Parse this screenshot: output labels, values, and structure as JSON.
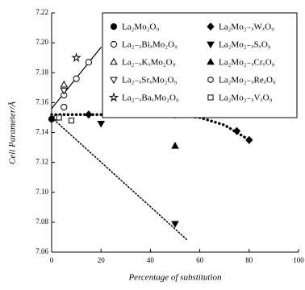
{
  "chart_data": {
    "type": "scatter",
    "xlabel": "Percentage of substitution",
    "ylabel": "Cell Parameter/Å",
    "xlim": [
      0,
      100
    ],
    "xticks": [
      0,
      20,
      40,
      60,
      80,
      100
    ],
    "ylim": [
      7.06,
      7.22
    ],
    "yticks": [
      7.06,
      7.08,
      {
        "value": 7.1,
        "label": "7.10"
      },
      7.12,
      7.14,
      7.16,
      7.18,
      {
        "value": 7.2,
        "label": "7.20"
      },
      7.22
    ],
    "legend": "upper right",
    "series": [
      {
        "name": "La₂Mo₂O₉",
        "marker": "circle",
        "filled": true,
        "color": "#000",
        "x": [
          0
        ],
        "values": [
          7.149
        ]
      },
      {
        "name": "La₂₋ₓBiₓMo₂O₉",
        "marker": "circle",
        "filled": false,
        "color": "#000",
        "x": [
          5,
          5,
          10,
          15
        ],
        "values": [
          7.157,
          7.165,
          7.176,
          7.187
        ]
      },
      {
        "name": "La₂₋ₓKₓMo₂O₉",
        "marker": "triangle-up",
        "filled": false,
        "color": "#000",
        "x": [
          5
        ],
        "values": [
          7.172
        ]
      },
      {
        "name": "La₂₋ₓSrₓMo₂O₉",
        "marker": "triangle-down",
        "filled": false,
        "color": "#000",
        "x": [
          5
        ],
        "values": [
          7.168
        ]
      },
      {
        "name": "La₂₋ₓBaₓMo₂O₉",
        "marker": "star",
        "filled": false,
        "color": "#000",
        "x": [
          10
        ],
        "values": [
          7.19
        ]
      },
      {
        "name": "La₂Mo₂₋ₓWₓO₉",
        "marker": "diamond",
        "filled": true,
        "color": "#000",
        "x": [
          15,
          50,
          75,
          80
        ],
        "values": [
          7.152,
          7.152,
          7.141,
          7.135
        ]
      },
      {
        "name": "La₂Mo₂₋ₓSₓO₉",
        "marker": "triangle-down",
        "filled": true,
        "color": "#000",
        "x": [
          20,
          50
        ],
        "values": [
          7.146,
          7.079
        ]
      },
      {
        "name": "La₂Mo₂₋ₓCrₓO₉",
        "marker": "triangle-up",
        "filled": true,
        "color": "#000",
        "x": [
          50
        ],
        "values": [
          7.131
        ]
      },
      {
        "name": "La₂Mo₂₋ₓReₓO₉",
        "marker": "hexagon",
        "filled": false,
        "color": "#000",
        "x": [
          2
        ],
        "values": [
          7.15
        ]
      },
      {
        "name": "La₂Mo₂₋ₓVₓO₉",
        "marker": "square",
        "filled": false,
        "color": "#000",
        "x": [
          3,
          8
        ],
        "values": [
          7.15,
          7.148
        ]
      }
    ],
    "lines": [
      {
        "style": "solid",
        "color": "#000",
        "x": [
          0,
          20
        ],
        "values": [
          7.156,
          7.197
        ]
      },
      {
        "style": "dotted-thick",
        "color": "#000",
        "x": [
          0,
          20,
          40,
          50,
          60,
          70,
          80
        ],
        "values": [
          7.152,
          7.152,
          7.1525,
          7.152,
          7.15,
          7.145,
          7.135
        ]
      },
      {
        "style": "dotted",
        "color": "#000",
        "x": [
          0,
          55
        ],
        "values": [
          7.15,
          7.068
        ]
      }
    ]
  }
}
